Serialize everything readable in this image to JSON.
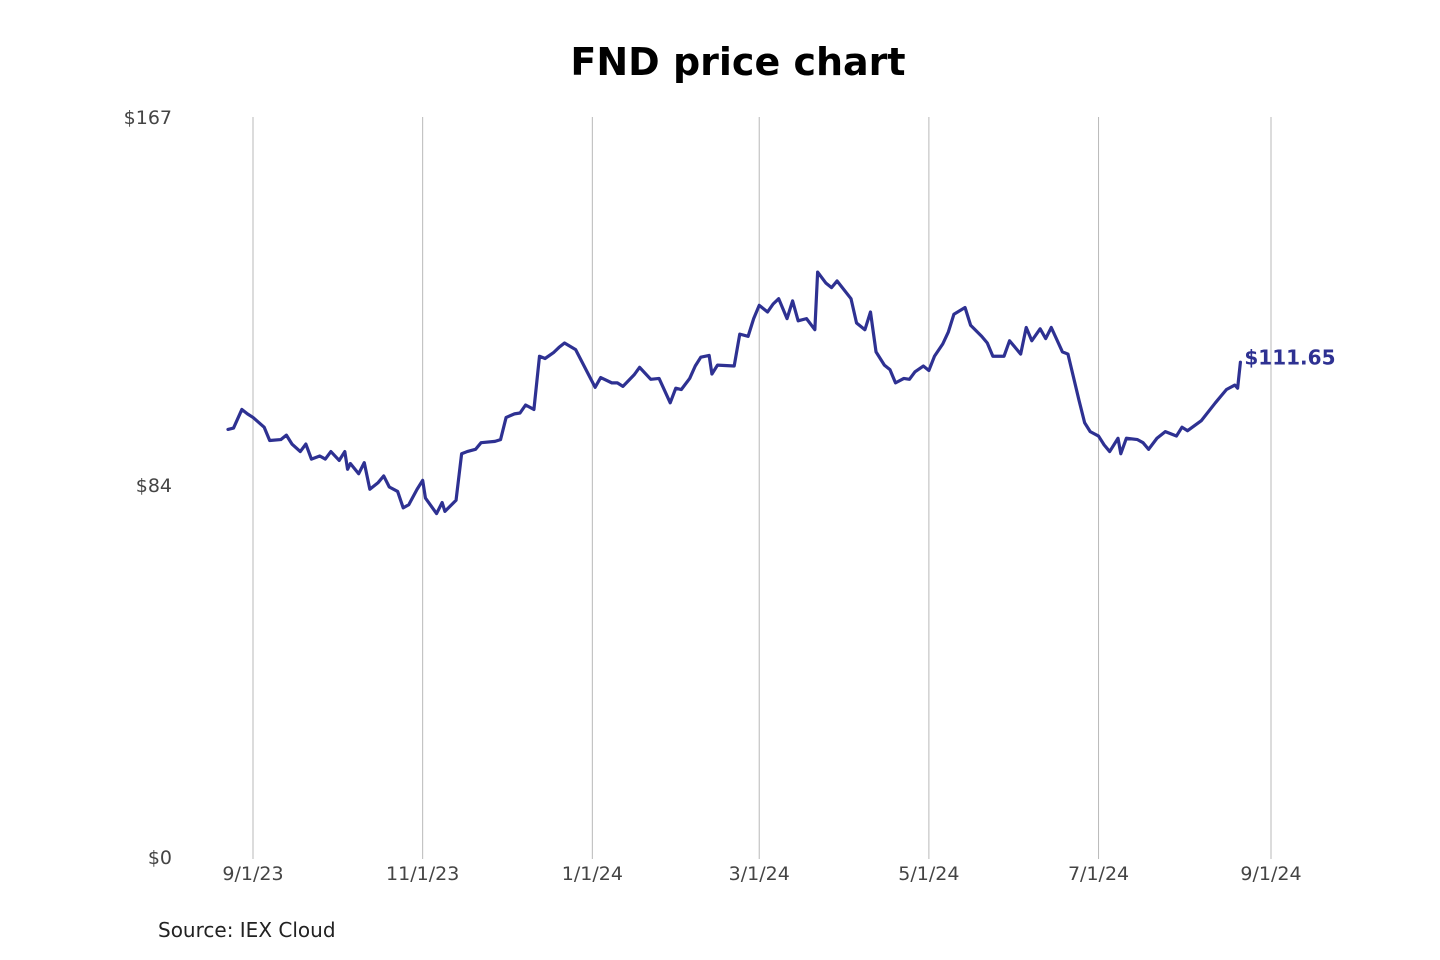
{
  "title": "FND price chart",
  "source": "Source: IEX Cloud",
  "colors": {
    "line": "#2e3192",
    "grid": "#b9b9b9",
    "tick_text": "#444444"
  },
  "chart_data": {
    "type": "line",
    "title": "FND price chart",
    "xlabel": "",
    "ylabel": "",
    "ylim": [
      0,
      167
    ],
    "y_ticks": [
      {
        "value": 0,
        "label": "$0"
      },
      {
        "value": 84,
        "label": "$84"
      },
      {
        "value": 167,
        "label": "$167"
      }
    ],
    "x_ticks": [
      {
        "date": "2023-09-01",
        "label": "9/1/23"
      },
      {
        "date": "2023-11-01",
        "label": "11/1/23"
      },
      {
        "date": "2024-01-01",
        "label": "1/1/24"
      },
      {
        "date": "2024-03-01",
        "label": "3/1/24"
      },
      {
        "date": "2024-05-01",
        "label": "5/1/24"
      },
      {
        "date": "2024-07-01",
        "label": "7/1/24"
      },
      {
        "date": "2024-09-01",
        "label": "9/1/24"
      }
    ],
    "grid": {
      "vertical": true,
      "horizontal": false
    },
    "last_value_label": "$111.65",
    "series": [
      {
        "values": [
          [
            "2023-08-23",
            96.5
          ],
          [
            "2023-08-25",
            96.8
          ],
          [
            "2023-08-28",
            101.0
          ],
          [
            "2023-08-30",
            100.0
          ],
          [
            "2023-09-01",
            99.2
          ],
          [
            "2023-09-05",
            97.0
          ],
          [
            "2023-09-07",
            94.0
          ],
          [
            "2023-09-11",
            94.2
          ],
          [
            "2023-09-13",
            95.2
          ],
          [
            "2023-09-15",
            93.2
          ],
          [
            "2023-09-18",
            91.5
          ],
          [
            "2023-09-20",
            93.2
          ],
          [
            "2023-09-22",
            89.8
          ],
          [
            "2023-09-25",
            90.5
          ],
          [
            "2023-09-27",
            89.8
          ],
          [
            "2023-09-29",
            91.5
          ],
          [
            "2023-10-02",
            89.5
          ],
          [
            "2023-10-04",
            91.5
          ],
          [
            "2023-10-05",
            87.5
          ],
          [
            "2023-10-06",
            88.8
          ],
          [
            "2023-10-09",
            86.5
          ],
          [
            "2023-10-11",
            89.0
          ],
          [
            "2023-10-13",
            83.0
          ],
          [
            "2023-10-16",
            84.5
          ],
          [
            "2023-10-18",
            86.0
          ],
          [
            "2023-10-20",
            83.5
          ],
          [
            "2023-10-23",
            82.5
          ],
          [
            "2023-10-25",
            78.8
          ],
          [
            "2023-10-27",
            79.5
          ],
          [
            "2023-10-30",
            83.0
          ],
          [
            "2023-11-01",
            85.0
          ],
          [
            "2023-11-02",
            81.0
          ],
          [
            "2023-11-06",
            77.5
          ],
          [
            "2023-11-08",
            80.0
          ],
          [
            "2023-11-09",
            78.0
          ],
          [
            "2023-11-13",
            80.5
          ],
          [
            "2023-11-15",
            91.0
          ],
          [
            "2023-11-17",
            91.5
          ],
          [
            "2023-11-20",
            92.0
          ],
          [
            "2023-11-22",
            93.5
          ],
          [
            "2023-11-27",
            93.8
          ],
          [
            "2023-11-29",
            94.2
          ],
          [
            "2023-12-01",
            99.2
          ],
          [
            "2023-12-04",
            100.0
          ],
          [
            "2023-12-06",
            100.2
          ],
          [
            "2023-12-08",
            102.0
          ],
          [
            "2023-12-11",
            101.0
          ],
          [
            "2023-12-13",
            113.0
          ],
          [
            "2023-12-15",
            112.5
          ],
          [
            "2023-12-18",
            113.8
          ],
          [
            "2023-12-20",
            115.0
          ],
          [
            "2023-12-22",
            116.0
          ],
          [
            "2023-12-26",
            114.5
          ],
          [
            "2024-01-02",
            106.0
          ],
          [
            "2024-01-04",
            108.2
          ],
          [
            "2024-01-08",
            107.0
          ],
          [
            "2024-01-10",
            107.0
          ],
          [
            "2024-01-12",
            106.2
          ],
          [
            "2024-01-16",
            108.8
          ],
          [
            "2024-01-18",
            110.5
          ],
          [
            "2024-01-22",
            107.8
          ],
          [
            "2024-01-25",
            108.0
          ],
          [
            "2024-01-29",
            102.5
          ],
          [
            "2024-01-31",
            105.8
          ],
          [
            "2024-02-02",
            105.5
          ],
          [
            "2024-02-05",
            108.0
          ],
          [
            "2024-02-07",
            110.8
          ],
          [
            "2024-02-09",
            112.8
          ],
          [
            "2024-02-12",
            113.2
          ],
          [
            "2024-02-13",
            109.0
          ],
          [
            "2024-02-15",
            111.0
          ],
          [
            "2024-02-21",
            110.8
          ],
          [
            "2024-02-23",
            118.0
          ],
          [
            "2024-02-26",
            117.5
          ],
          [
            "2024-02-28",
            121.5
          ],
          [
            "2024-03-01",
            124.5
          ],
          [
            "2024-03-04",
            123.0
          ],
          [
            "2024-03-06",
            124.8
          ],
          [
            "2024-03-08",
            126.0
          ],
          [
            "2024-03-11",
            121.5
          ],
          [
            "2024-03-13",
            125.5
          ],
          [
            "2024-03-15",
            121.0
          ],
          [
            "2024-03-18",
            121.5
          ],
          [
            "2024-03-21",
            119.0
          ],
          [
            "2024-03-22",
            132.0
          ],
          [
            "2024-03-25",
            129.5
          ],
          [
            "2024-03-27",
            128.5
          ],
          [
            "2024-03-29",
            130.0
          ],
          [
            "2024-04-03",
            126.0
          ],
          [
            "2024-04-05",
            120.5
          ],
          [
            "2024-04-08",
            119.0
          ],
          [
            "2024-04-10",
            123.0
          ],
          [
            "2024-04-12",
            114.0
          ],
          [
            "2024-04-15",
            111.0
          ],
          [
            "2024-04-17",
            110.0
          ],
          [
            "2024-04-19",
            107.0
          ],
          [
            "2024-04-22",
            108.0
          ],
          [
            "2024-04-24",
            107.8
          ],
          [
            "2024-04-26",
            109.5
          ],
          [
            "2024-04-29",
            110.8
          ],
          [
            "2024-05-01",
            109.8
          ],
          [
            "2024-05-03",
            113.0
          ],
          [
            "2024-05-06",
            115.8
          ],
          [
            "2024-05-08",
            118.5
          ],
          [
            "2024-05-10",
            122.5
          ],
          [
            "2024-05-14",
            124.0
          ],
          [
            "2024-05-16",
            120.0
          ],
          [
            "2024-05-20",
            117.5
          ],
          [
            "2024-05-22",
            116.0
          ],
          [
            "2024-05-24",
            113.0
          ],
          [
            "2024-05-28",
            113.0
          ],
          [
            "2024-05-30",
            116.5
          ],
          [
            "2024-06-03",
            113.5
          ],
          [
            "2024-06-05",
            119.5
          ],
          [
            "2024-06-07",
            116.5
          ],
          [
            "2024-06-10",
            119.2
          ],
          [
            "2024-06-12",
            117.0
          ],
          [
            "2024-06-14",
            119.5
          ],
          [
            "2024-06-18",
            114.0
          ],
          [
            "2024-06-20",
            113.5
          ],
          [
            "2024-06-24",
            103.0
          ],
          [
            "2024-06-26",
            98.0
          ],
          [
            "2024-06-28",
            96.0
          ],
          [
            "2024-07-01",
            95.0
          ],
          [
            "2024-07-03",
            93.0
          ],
          [
            "2024-07-05",
            91.5
          ],
          [
            "2024-07-08",
            94.5
          ],
          [
            "2024-07-09",
            91.0
          ],
          [
            "2024-07-11",
            94.5
          ],
          [
            "2024-07-15",
            94.2
          ],
          [
            "2024-07-17",
            93.5
          ],
          [
            "2024-07-19",
            92.0
          ],
          [
            "2024-07-22",
            94.5
          ],
          [
            "2024-07-25",
            96.0
          ],
          [
            "2024-07-29",
            95.0
          ],
          [
            "2024-07-31",
            97.0
          ],
          [
            "2024-08-02",
            96.2
          ],
          [
            "2024-08-07",
            98.5
          ],
          [
            "2024-08-12",
            102.5
          ],
          [
            "2024-08-14",
            104.0
          ],
          [
            "2024-08-16",
            105.5
          ],
          [
            "2024-08-19",
            106.5
          ],
          [
            "2024-08-20",
            105.8
          ],
          [
            "2024-08-21",
            111.65
          ]
        ]
      }
    ]
  }
}
